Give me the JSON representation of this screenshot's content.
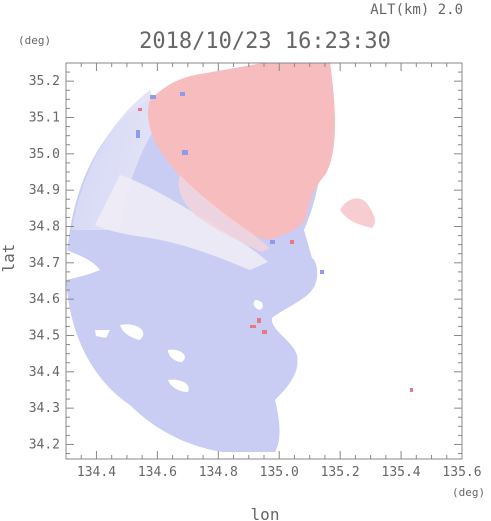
{
  "chart_data": {
    "type": "heatmap",
    "title": "2018/10/23 16:23:30",
    "subtitle": "ALT(km) 2.0",
    "xlabel": "lon",
    "ylabel": "lat",
    "x_unit": "(deg)",
    "y_unit": "(deg)",
    "xlim": [
      134.3,
      135.6
    ],
    "ylim": [
      34.16,
      35.25
    ],
    "x_ticks": [
      "134.4",
      "134.6",
      "134.8",
      "135.0",
      "135.2",
      "135.4",
      "135.6"
    ],
    "y_ticks": [
      "34.2",
      "34.3",
      "34.4",
      "34.5",
      "34.6",
      "34.7",
      "34.8",
      "34.9",
      "35.0",
      "35.1",
      "35.2"
    ],
    "grid": false,
    "colors": {
      "positive": "#f5b8bb",
      "negative": "#c6ccf4",
      "neutral": "#eceaf6",
      "axis": "#888888"
    }
  }
}
